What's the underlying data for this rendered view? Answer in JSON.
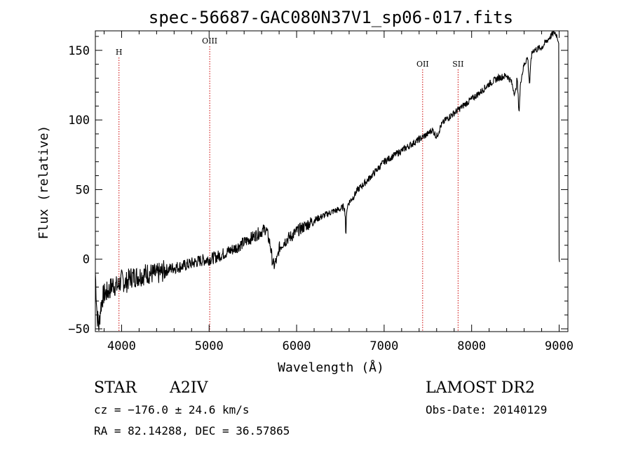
{
  "chart_data": {
    "type": "line",
    "title": "spec-56687-GAC080N37V1_sp06-017.fits",
    "xlabel": "Wavelength (Å)",
    "ylabel": "Flux (relative)",
    "xlim": [
      3700,
      9100
    ],
    "ylim": [
      -52,
      164
    ],
    "xticks": [
      4000,
      5000,
      6000,
      7000,
      8000,
      9000
    ],
    "yticks": [
      -50,
      0,
      50,
      100,
      150
    ],
    "grid": false,
    "series_color": "#000000",
    "marker_color": "#cc0000",
    "spectral_lines": [
      {
        "label": "H",
        "wavelength": 3970
      },
      {
        "label": "OIII",
        "wavelength": 5007
      },
      {
        "label": "OII",
        "wavelength": 7440
      },
      {
        "label": "SII",
        "wavelength": 7845
      }
    ],
    "series": [
      {
        "x": [
          3700,
          3720,
          3740,
          3760,
          3780,
          3800,
          3830,
          3860,
          3900,
          3950,
          4000,
          4050,
          4100,
          4200,
          4300,
          4400,
          4500,
          4600,
          4700,
          4800,
          4900,
          5000,
          5100,
          5200,
          5300,
          5400,
          5500,
          5600,
          5650,
          5700,
          5720,
          5740,
          5760,
          5780,
          5800,
          5850,
          5900,
          5950,
          6000,
          6100,
          6200,
          6300,
          6400,
          6500,
          6540,
          6555,
          6563,
          6570,
          6590,
          6650,
          6700,
          6800,
          6900,
          7000,
          7100,
          7200,
          7300,
          7400,
          7500,
          7550,
          7600,
          7650,
          7700,
          7800,
          7900,
          8000,
          8100,
          8200,
          8300,
          8400,
          8450,
          8498,
          8520,
          8542,
          8560,
          8600,
          8640,
          8662,
          8680,
          8700,
          8800,
          8850,
          8900,
          8950,
          8980,
          8995,
          9000,
          9005
        ],
        "y": [
          -10,
          -40,
          -48,
          -35,
          -28,
          -25,
          -24,
          -22,
          -18,
          -20,
          -15,
          -17,
          -13,
          -12,
          -10,
          -11,
          -8,
          -6,
          -5,
          -3,
          -1,
          0,
          2,
          5,
          8,
          12,
          16,
          20,
          22,
          10,
          0,
          -5,
          -2,
          0,
          8,
          12,
          15,
          17,
          20,
          24,
          28,
          31,
          34,
          36,
          38,
          33,
          13,
          35,
          40,
          45,
          50,
          56,
          63,
          70,
          74,
          78,
          82,
          86,
          90,
          93,
          88,
          96,
          100,
          105,
          110,
          115,
          120,
          126,
          130,
          132,
          128,
          118,
          130,
          105,
          128,
          140,
          145,
          125,
          145,
          150,
          152,
          156,
          160,
          163,
          160,
          155,
          0,
          -2
        ]
      }
    ]
  },
  "info": {
    "object_class": "STAR",
    "subclass": "A2IV",
    "survey": "LAMOST DR2",
    "cz": "cz = −176.0 ± 24.6 km/s",
    "obs_date": "Obs-Date: 20140129",
    "coords": "RA =  82.14288, DEC =  36.57865"
  }
}
